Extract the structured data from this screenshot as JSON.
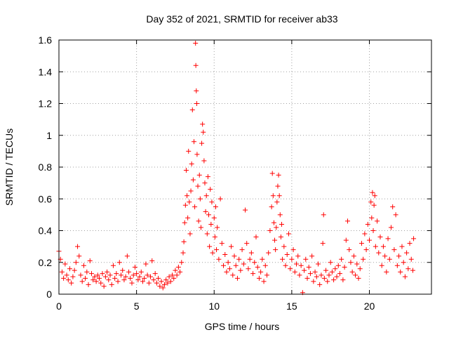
{
  "chart_data": {
    "type": "scatter",
    "marker": "plus",
    "title": "Day 352 of 2021, SRMTID for receiver ab33",
    "xlabel": "GPS time / hours",
    "ylabel": "SRMTID / TECUs",
    "xlim": [
      0,
      24
    ],
    "ylim": [
      0,
      1.6
    ],
    "xticks": [
      0,
      5,
      10,
      15,
      20
    ],
    "yticks": [
      0,
      0.2,
      0.4,
      0.6,
      0.8,
      1,
      1.2,
      1.4,
      1.6
    ],
    "ytick_labels": [
      "0",
      "0.2",
      "0.4",
      "0.6",
      "0.8",
      "1",
      "1.2",
      "1.4",
      "1.6"
    ],
    "grid": true,
    "color": "#ff0000",
    "series": [
      {
        "name": "SRMTID",
        "points": [
          [
            0.0,
            0.27
          ],
          [
            0.1,
            0.22
          ],
          [
            0.2,
            0.14
          ],
          [
            0.3,
            0.1
          ],
          [
            0.4,
            0.19
          ],
          [
            0.5,
            0.12
          ],
          [
            0.6,
            0.09
          ],
          [
            0.7,
            0.16
          ],
          [
            0.8,
            0.07
          ],
          [
            0.9,
            0.11
          ],
          [
            1.0,
            0.15
          ],
          [
            1.1,
            0.2
          ],
          [
            1.2,
            0.3
          ],
          [
            1.3,
            0.24
          ],
          [
            1.4,
            0.12
          ],
          [
            1.5,
            0.08
          ],
          [
            1.6,
            0.18
          ],
          [
            1.7,
            0.1
          ],
          [
            1.8,
            0.14
          ],
          [
            1.9,
            0.06
          ],
          [
            2.0,
            0.21
          ],
          [
            2.1,
            0.13
          ],
          [
            2.2,
            0.09
          ],
          [
            2.3,
            0.11
          ],
          [
            2.4,
            0.08
          ],
          [
            2.5,
            0.12
          ],
          [
            2.6,
            0.1
          ],
          [
            2.7,
            0.07
          ],
          [
            2.8,
            0.13
          ],
          [
            2.9,
            0.05
          ],
          [
            3.0,
            0.11
          ],
          [
            3.1,
            0.14
          ],
          [
            3.2,
            0.09
          ],
          [
            3.3,
            0.12
          ],
          [
            3.4,
            0.06
          ],
          [
            3.5,
            0.18
          ],
          [
            3.6,
            0.1
          ],
          [
            3.7,
            0.13
          ],
          [
            3.8,
            0.08
          ],
          [
            3.9,
            0.2
          ],
          [
            4.0,
            0.12
          ],
          [
            4.1,
            0.15
          ],
          [
            4.2,
            0.09
          ],
          [
            4.3,
            0.11
          ],
          [
            4.4,
            0.24
          ],
          [
            4.5,
            0.14
          ],
          [
            4.6,
            0.1
          ],
          [
            4.7,
            0.07
          ],
          [
            4.8,
            0.12
          ],
          [
            4.9,
            0.17
          ],
          [
            5.0,
            0.13
          ],
          [
            5.1,
            0.09
          ],
          [
            5.2,
            0.11
          ],
          [
            5.3,
            0.14
          ],
          [
            5.4,
            0.08
          ],
          [
            5.5,
            0.1
          ],
          [
            5.6,
            0.19
          ],
          [
            5.7,
            0.12
          ],
          [
            5.8,
            0.07
          ],
          [
            5.9,
            0.11
          ],
          [
            6.0,
            0.21
          ],
          [
            6.1,
            0.09
          ],
          [
            6.2,
            0.13
          ],
          [
            6.3,
            0.07
          ],
          [
            6.4,
            0.1
          ],
          [
            6.5,
            0.05
          ],
          [
            6.6,
            0.08
          ],
          [
            6.7,
            0.04
          ],
          [
            6.8,
            0.06
          ],
          [
            6.9,
            0.09
          ],
          [
            7.0,
            0.07
          ],
          [
            7.1,
            0.11
          ],
          [
            7.2,
            0.08
          ],
          [
            7.3,
            0.12
          ],
          [
            7.4,
            0.1
          ],
          [
            7.5,
            0.15
          ],
          [
            7.6,
            0.12
          ],
          [
            7.7,
            0.17
          ],
          [
            7.8,
            0.14
          ],
          [
            7.9,
            0.2
          ],
          [
            8.0,
            0.26
          ],
          [
            8.05,
            0.33
          ],
          [
            8.1,
            0.45
          ],
          [
            8.15,
            0.56
          ],
          [
            8.2,
            0.78
          ],
          [
            8.25,
            0.62
          ],
          [
            8.3,
            0.48
          ],
          [
            8.35,
            0.9
          ],
          [
            8.4,
            0.58
          ],
          [
            8.45,
            0.38
          ],
          [
            8.5,
            0.65
          ],
          [
            8.55,
            0.82
          ],
          [
            8.6,
            1.16
          ],
          [
            8.65,
            0.72
          ],
          [
            8.7,
            0.96
          ],
          [
            8.75,
            0.55
          ],
          [
            8.8,
            1.58
          ],
          [
            8.82,
            1.44
          ],
          [
            8.85,
            1.28
          ],
          [
            8.88,
            1.2
          ],
          [
            8.9,
            0.88
          ],
          [
            8.95,
            0.68
          ],
          [
            9.0,
            0.46
          ],
          [
            9.05,
            0.75
          ],
          [
            9.1,
            0.6
          ],
          [
            9.15,
            0.42
          ],
          [
            9.2,
            0.95
          ],
          [
            9.25,
            1.07
          ],
          [
            9.3,
            1.02
          ],
          [
            9.35,
            0.84
          ],
          [
            9.4,
            0.7
          ],
          [
            9.45,
            0.52
          ],
          [
            9.5,
            0.62
          ],
          [
            9.55,
            0.38
          ],
          [
            9.6,
            0.74
          ],
          [
            9.65,
            0.5
          ],
          [
            9.7,
            0.3
          ],
          [
            9.75,
            0.66
          ],
          [
            9.8,
            0.44
          ],
          [
            9.85,
            0.58
          ],
          [
            9.9,
            0.26
          ],
          [
            10.0,
            0.48
          ],
          [
            10.05,
            0.36
          ],
          [
            10.1,
            0.55
          ],
          [
            10.15,
            0.28
          ],
          [
            10.2,
            0.42
          ],
          [
            10.3,
            0.22
          ],
          [
            10.4,
            0.6
          ],
          [
            10.5,
            0.32
          ],
          [
            10.6,
            0.18
          ],
          [
            10.7,
            0.25
          ],
          [
            10.8,
            0.14
          ],
          [
            10.9,
            0.2
          ],
          [
            11.0,
            0.16
          ],
          [
            11.1,
            0.3
          ],
          [
            11.2,
            0.12
          ],
          [
            11.3,
            0.24
          ],
          [
            11.4,
            0.18
          ],
          [
            11.5,
            0.1
          ],
          [
            11.6,
            0.22
          ],
          [
            11.7,
            0.15
          ],
          [
            11.8,
            0.28
          ],
          [
            11.9,
            0.19
          ],
          [
            12.0,
            0.53
          ],
          [
            12.1,
            0.32
          ],
          [
            12.2,
            0.16
          ],
          [
            12.3,
            0.22
          ],
          [
            12.4,
            0.26
          ],
          [
            12.5,
            0.13
          ],
          [
            12.6,
            0.2
          ],
          [
            12.7,
            0.36
          ],
          [
            12.8,
            0.17
          ],
          [
            12.9,
            0.1
          ],
          [
            13.0,
            0.14
          ],
          [
            13.1,
            0.22
          ],
          [
            13.2,
            0.08
          ],
          [
            13.3,
            0.18
          ],
          [
            13.4,
            0.12
          ],
          [
            13.5,
            0.26
          ],
          [
            13.6,
            0.4
          ],
          [
            13.7,
            0.55
          ],
          [
            13.75,
            0.76
          ],
          [
            13.8,
            0.62
          ],
          [
            13.85,
            0.45
          ],
          [
            13.9,
            0.34
          ],
          [
            13.95,
            0.28
          ],
          [
            14.0,
            0.42
          ],
          [
            14.05,
            0.58
          ],
          [
            14.1,
            0.68
          ],
          [
            14.15,
            0.75
          ],
          [
            14.2,
            0.62
          ],
          [
            14.25,
            0.5
          ],
          [
            14.3,
            0.36
          ],
          [
            14.35,
            0.44
          ],
          [
            14.4,
            0.22
          ],
          [
            14.5,
            0.3
          ],
          [
            14.6,
            0.18
          ],
          [
            14.7,
            0.25
          ],
          [
            14.8,
            0.38
          ],
          [
            14.9,
            0.16
          ],
          [
            15.0,
            0.22
          ],
          [
            15.1,
            0.28
          ],
          [
            15.2,
            0.14
          ],
          [
            15.3,
            0.19
          ],
          [
            15.4,
            0.24
          ],
          [
            15.5,
            0.12
          ],
          [
            15.6,
            0.18
          ],
          [
            15.7,
            0.01
          ],
          [
            15.8,
            0.15
          ],
          [
            15.9,
            0.22
          ],
          [
            16.0,
            0.1
          ],
          [
            16.1,
            0.17
          ],
          [
            16.2,
            0.13
          ],
          [
            16.3,
            0.24
          ],
          [
            16.4,
            0.08
          ],
          [
            16.5,
            0.14
          ],
          [
            16.6,
            0.11
          ],
          [
            16.7,
            0.19
          ],
          [
            16.8,
            0.06
          ],
          [
            16.9,
            0.12
          ],
          [
            17.0,
            0.32
          ],
          [
            17.05,
            0.5
          ],
          [
            17.1,
            0.1
          ],
          [
            17.2,
            0.15
          ],
          [
            17.3,
            0.08
          ],
          [
            17.4,
            0.12
          ],
          [
            17.5,
            0.2
          ],
          [
            17.6,
            0.14
          ],
          [
            17.7,
            0.09
          ],
          [
            17.8,
            0.16
          ],
          [
            17.9,
            0.11
          ],
          [
            18.0,
            0.18
          ],
          [
            18.1,
            0.13
          ],
          [
            18.2,
            0.22
          ],
          [
            18.3,
            0.09
          ],
          [
            18.4,
            0.17
          ],
          [
            18.5,
            0.34
          ],
          [
            18.6,
            0.46
          ],
          [
            18.7,
            0.28
          ],
          [
            18.8,
            0.2
          ],
          [
            18.9,
            0.14
          ],
          [
            19.0,
            0.24
          ],
          [
            19.1,
            0.12
          ],
          [
            19.2,
            0.19
          ],
          [
            19.3,
            0.1
          ],
          [
            19.4,
            0.16
          ],
          [
            19.5,
            0.32
          ],
          [
            19.6,
            0.22
          ],
          [
            19.7,
            0.38
          ],
          [
            19.8,
            0.28
          ],
          [
            19.9,
            0.44
          ],
          [
            20.0,
            0.34
          ],
          [
            20.1,
            0.58
          ],
          [
            20.15,
            0.48
          ],
          [
            20.2,
            0.64
          ],
          [
            20.25,
            0.4
          ],
          [
            20.3,
            0.56
          ],
          [
            20.35,
            0.62
          ],
          [
            20.4,
            0.3
          ],
          [
            20.5,
            0.46
          ],
          [
            20.6,
            0.26
          ],
          [
            20.7,
            0.36
          ],
          [
            20.8,
            0.18
          ],
          [
            20.9,
            0.3
          ],
          [
            21.0,
            0.24
          ],
          [
            21.1,
            0.14
          ],
          [
            21.2,
            0.35
          ],
          [
            21.3,
            0.22
          ],
          [
            21.4,
            0.42
          ],
          [
            21.5,
            0.55
          ],
          [
            21.6,
            0.28
          ],
          [
            21.7,
            0.5
          ],
          [
            21.8,
            0.18
          ],
          [
            21.9,
            0.24
          ],
          [
            22.0,
            0.14
          ],
          [
            22.1,
            0.3
          ],
          [
            22.2,
            0.2
          ],
          [
            22.3,
            0.11
          ],
          [
            22.4,
            0.26
          ],
          [
            22.5,
            0.16
          ],
          [
            22.6,
            0.32
          ],
          [
            22.7,
            0.22
          ],
          [
            22.8,
            0.15
          ],
          [
            22.85,
            0.35
          ]
        ]
      }
    ]
  }
}
